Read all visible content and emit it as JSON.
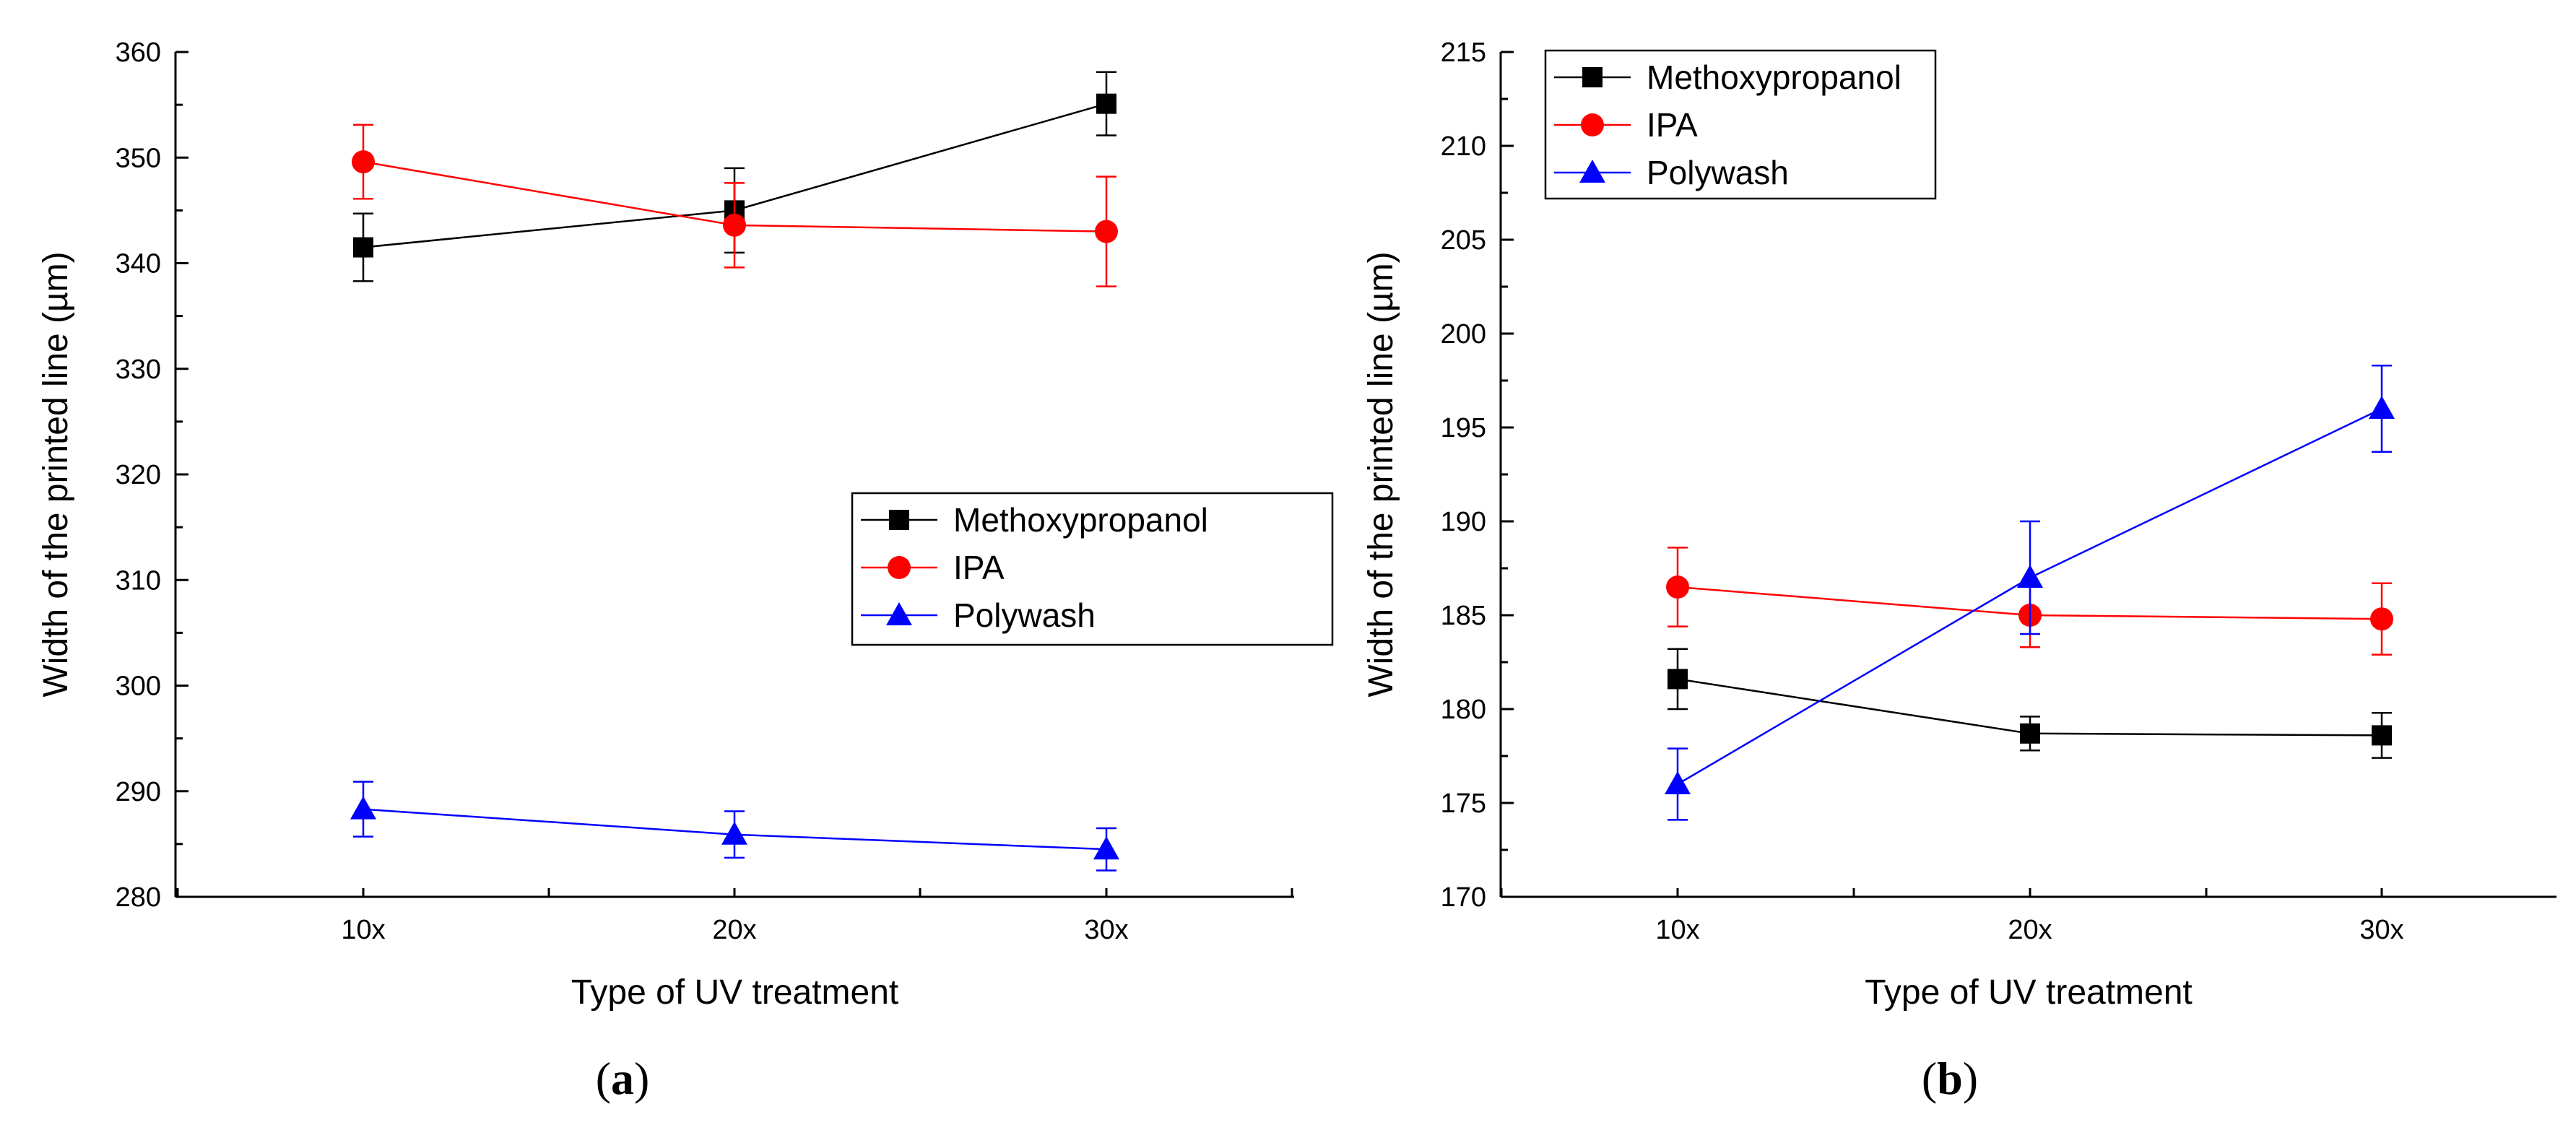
{
  "chart_data": [
    {
      "type": "line",
      "panel_label": "a",
      "categories": [
        "10x",
        "20x",
        "30x"
      ],
      "xlabel": "Type of UV treatment",
      "ylabel": "Width of the printed line (µm)",
      "ylim": [
        280,
        360
      ],
      "yticks": [
        280,
        290,
        300,
        310,
        320,
        330,
        340,
        350,
        360
      ],
      "legend_position": "center-right",
      "series": [
        {
          "name": "Methoxypropanol",
          "color": "#000000",
          "marker": "square",
          "values": [
            341.5,
            345.0,
            355.1
          ],
          "errors": [
            3.2,
            4.0,
            3.0
          ]
        },
        {
          "name": "IPA",
          "color": "#ff0000",
          "marker": "circle",
          "values": [
            349.6,
            343.6,
            343.0
          ],
          "errors": [
            3.5,
            4.0,
            5.2
          ]
        },
        {
          "name": "Polywash",
          "color": "#0000ff",
          "marker": "triangle",
          "values": [
            288.3,
            285.9,
            284.5
          ],
          "errors": [
            2.6,
            2.2,
            2.0
          ]
        }
      ]
    },
    {
      "type": "line",
      "panel_label": "b",
      "categories": [
        "10x",
        "20x",
        "30x"
      ],
      "xlabel": "Type of UV treatment",
      "ylabel": "Width of the printed line (µm)",
      "ylim": [
        170,
        215
      ],
      "yticks": [
        170,
        175,
        180,
        185,
        190,
        195,
        200,
        205,
        210,
        215
      ],
      "legend_position": "top-left",
      "series": [
        {
          "name": "Methoxypropanol",
          "color": "#000000",
          "marker": "square",
          "values": [
            181.6,
            178.7,
            178.6
          ],
          "errors": [
            1.6,
            0.9,
            1.2
          ]
        },
        {
          "name": "IPA",
          "color": "#ff0000",
          "marker": "circle",
          "values": [
            186.5,
            185.0,
            184.8
          ],
          "errors": [
            2.1,
            1.7,
            1.9
          ]
        },
        {
          "name": "Polywash",
          "color": "#0000ff",
          "marker": "triangle",
          "values": [
            176.0,
            187.0,
            196.0
          ],
          "errors": [
            1.9,
            3.0,
            2.3
          ]
        }
      ]
    }
  ]
}
